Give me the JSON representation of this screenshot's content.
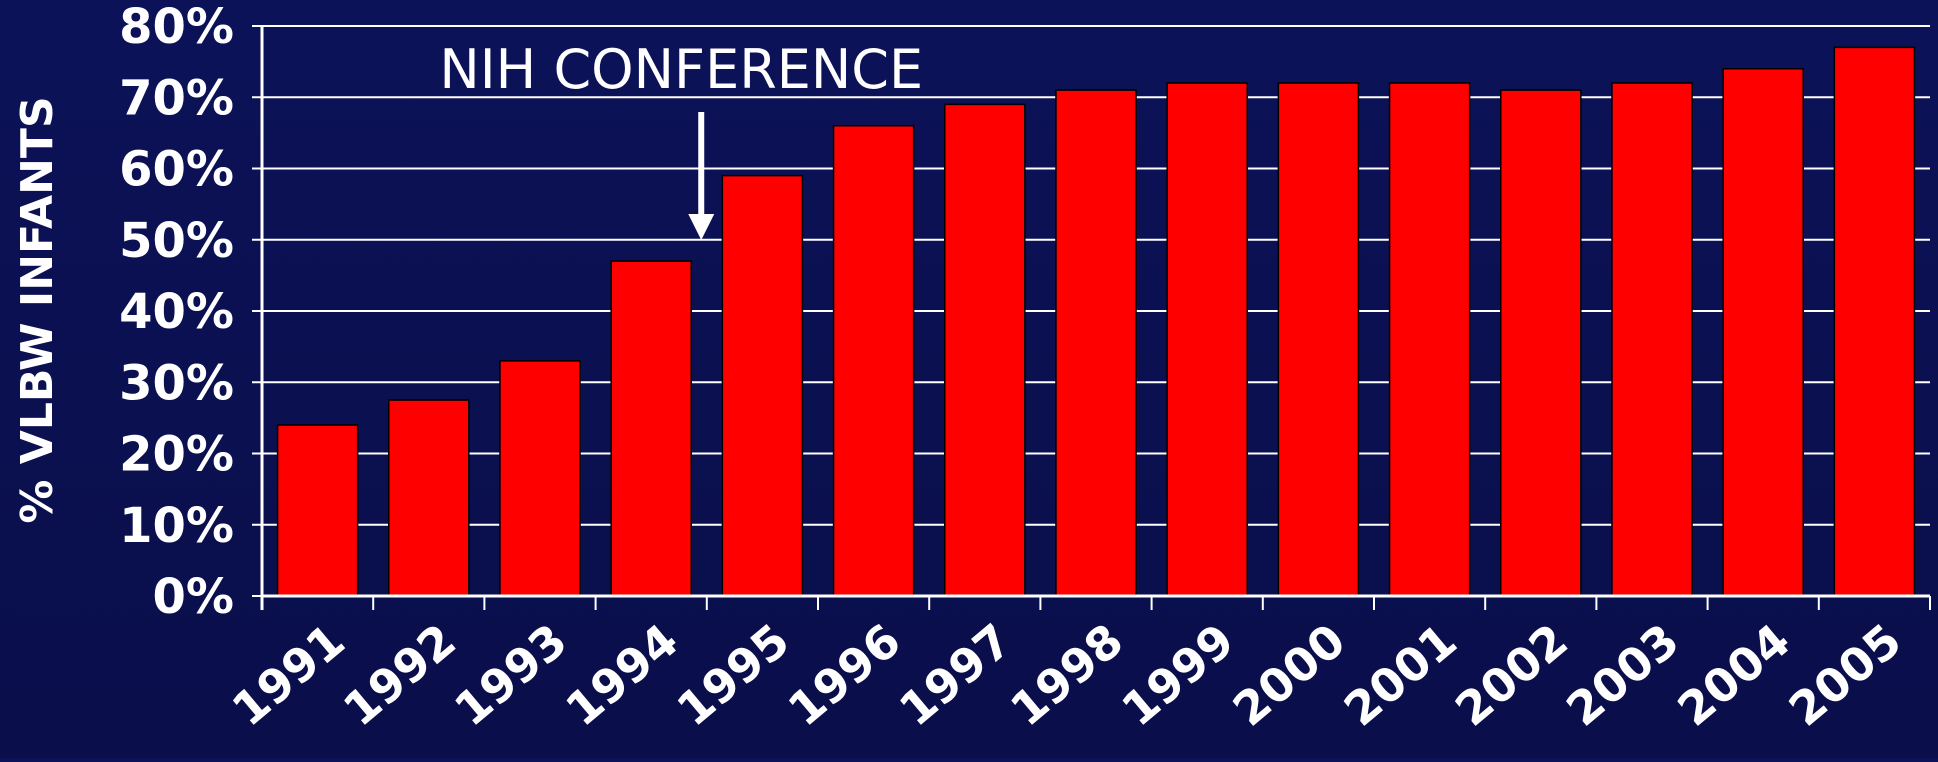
{
  "chart_data": {
    "type": "bar",
    "title": "",
    "xlabel": "",
    "ylabel": "% VLBW INFANTS",
    "categories": [
      "1991",
      "1992",
      "1993",
      "1994",
      "1995",
      "1996",
      "1997",
      "1998",
      "1999",
      "2000",
      "2001",
      "2002",
      "2003",
      "2004",
      "2005"
    ],
    "values": [
      24,
      27.5,
      33,
      47,
      59,
      66,
      69,
      71,
      72,
      72,
      72,
      71,
      72,
      74,
      77
    ],
    "y_ticks": [
      "0%",
      "10%",
      "20%",
      "30%",
      "40%",
      "50%",
      "60%",
      "70%",
      "80%"
    ],
    "ylim": [
      0,
      80
    ],
    "grid": true,
    "bar_color": "#ff0000",
    "background_color": "#0b0f52",
    "annotation": {
      "text": "NIH CONFERENCE",
      "category": "1994"
    }
  }
}
